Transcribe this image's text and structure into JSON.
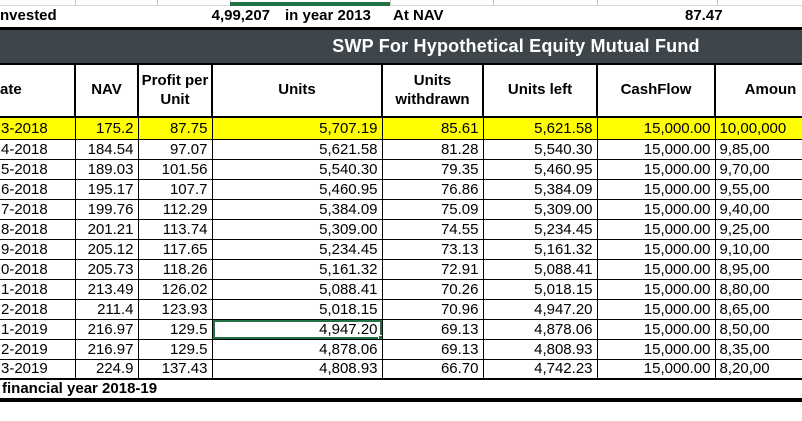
{
  "colors": {
    "title_bar_bg": "#3e464c",
    "title_text": "#ffffff",
    "highlight_row_bg": "#ffff00",
    "selection_green": "#217346"
  },
  "top_info": {
    "invested_label": "nvested",
    "invested_amount": "4,99,207",
    "invested_note": "in year 2013",
    "at_nav_label": "At NAV",
    "at_nav_value": "87.47"
  },
  "title": "SWP For Hypothetical Equity Mutual Fund",
  "table": {
    "headers": {
      "date": "ate",
      "nav": "NAV",
      "profit": "Profit per Unit",
      "units": "Units",
      "withdrawn": "Units withdrawn",
      "left": "Units left",
      "cashflow": "CashFlow",
      "amount": "Amoun"
    },
    "selected_cell": {
      "row_index": 10,
      "column": "units"
    },
    "rows": [
      {
        "date": "3-2018",
        "nav": "175.2",
        "profit": "87.75",
        "units": "5,707.19",
        "withdrawn": "85.61",
        "left": "5,621.58",
        "cashflow": "15,000.00",
        "amount": "10,00,000",
        "highlight": true
      },
      {
        "date": "4-2018",
        "nav": "184.54",
        "profit": "97.07",
        "units": "5,621.58",
        "withdrawn": "81.28",
        "left": "5,540.30",
        "cashflow": "15,000.00",
        "amount": "9,85,00"
      },
      {
        "date": "5-2018",
        "nav": "189.03",
        "profit": "101.56",
        "units": "5,540.30",
        "withdrawn": "79.35",
        "left": "5,460.95",
        "cashflow": "15,000.00",
        "amount": "9,70,00"
      },
      {
        "date": "6-2018",
        "nav": "195.17",
        "profit": "107.7",
        "units": "5,460.95",
        "withdrawn": "76.86",
        "left": "5,384.09",
        "cashflow": "15,000.00",
        "amount": "9,55,00"
      },
      {
        "date": "7-2018",
        "nav": "199.76",
        "profit": "112.29",
        "units": "5,384.09",
        "withdrawn": "75.09",
        "left": "5,309.00",
        "cashflow": "15,000.00",
        "amount": "9,40,00"
      },
      {
        "date": "8-2018",
        "nav": "201.21",
        "profit": "113.74",
        "units": "5,309.00",
        "withdrawn": "74.55",
        "left": "5,234.45",
        "cashflow": "15,000.00",
        "amount": "9,25,00"
      },
      {
        "date": "9-2018",
        "nav": "205.12",
        "profit": "117.65",
        "units": "5,234.45",
        "withdrawn": "73.13",
        "left": "5,161.32",
        "cashflow": "15,000.00",
        "amount": "9,10,00"
      },
      {
        "date": "0-2018",
        "nav": "205.73",
        "profit": "118.26",
        "units": "5,161.32",
        "withdrawn": "72.91",
        "left": "5,088.41",
        "cashflow": "15,000.00",
        "amount": "8,95,00"
      },
      {
        "date": "1-2018",
        "nav": "213.49",
        "profit": "126.02",
        "units": "5,088.41",
        "withdrawn": "70.26",
        "left": "5,018.15",
        "cashflow": "15,000.00",
        "amount": "8,80,00"
      },
      {
        "date": "2-2018",
        "nav": "211.4",
        "profit": "123.93",
        "units": "5,018.15",
        "withdrawn": "70.96",
        "left": "4,947.20",
        "cashflow": "15,000.00",
        "amount": "8,65,00"
      },
      {
        "date": "1-2019",
        "nav": "216.97",
        "profit": "129.5",
        "units": "4,947.20",
        "withdrawn": "69.13",
        "left": "4,878.06",
        "cashflow": "15,000.00",
        "amount": "8,50,00"
      },
      {
        "date": "2-2019",
        "nav": "216.97",
        "profit": "129.5",
        "units": "4,878.06",
        "withdrawn": "69.13",
        "left": "4,808.93",
        "cashflow": "15,000.00",
        "amount": "8,35,00"
      },
      {
        "date": "3-2019",
        "nav": "224.9",
        "profit": "137.43",
        "units": "4,808.93",
        "withdrawn": "66.70",
        "left": "4,742.23",
        "cashflow": "15,000.00",
        "amount": "8,20,00"
      }
    ]
  },
  "footer_note": "financial year 2018-19"
}
